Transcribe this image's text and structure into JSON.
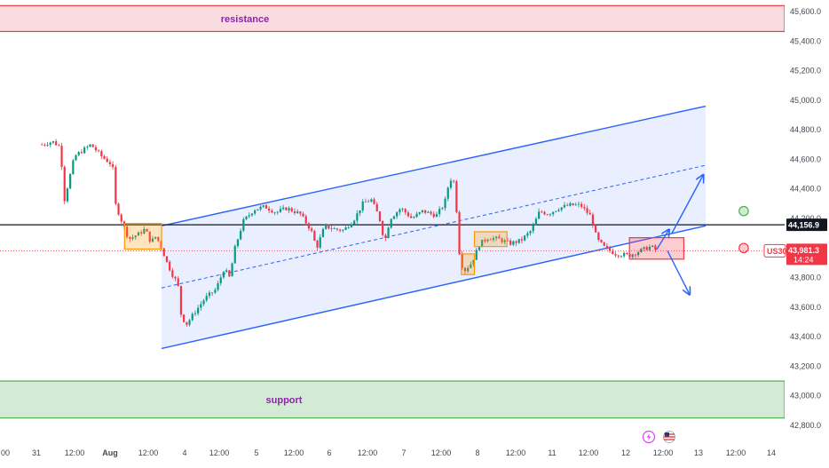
{
  "chart_data": {
    "type": "candlestick",
    "symbol": "US30",
    "last_price": "43,981.3",
    "countdown": "14:24",
    "level_price": "44,156.9",
    "ylim": [
      42780,
      45700
    ],
    "y_ticks": [
      "45,600.0",
      "45,400.0",
      "45,200.0",
      "45,000.0",
      "44,800.0",
      "44,600.0",
      "44,400.0",
      "44,200.0",
      "44,000.0",
      "43,800.0",
      "43,600.0",
      "43,400.0",
      "43,200.0",
      "43,000.0",
      "42,800.0"
    ],
    "x_ticks": [
      "00",
      "31",
      "12:00",
      "Aug",
      "12:00",
      "4",
      "12:00",
      "5",
      "12:00",
      "6",
      "12:00",
      "7",
      "12:00",
      "8",
      "12:00",
      "11",
      "12:00",
      "12",
      "12:00",
      "13",
      "12:00",
      "14"
    ],
    "zones": {
      "resistance": {
        "label": "resistance",
        "from": 45465,
        "to": 45640
      },
      "support": {
        "label": "support",
        "from": 42850,
        "to": 43100
      }
    },
    "channel": {
      "upper": [
        [
          0.0,
          44150
        ],
        [
          10.0,
          44960
        ]
      ],
      "lower": [
        [
          0.0,
          43320
        ],
        [
          10.0,
          44150
        ]
      ],
      "mid": [
        [
          0.0,
          43730
        ],
        [
          10.0,
          44560
        ]
      ]
    },
    "horizontal_level": 44157,
    "path": [
      [
        -2.2,
        44700
      ],
      [
        -2.0,
        44720
      ],
      [
        -1.85,
        44680
      ],
      [
        -1.8,
        44300
      ],
      [
        -1.6,
        44620
      ],
      [
        -1.3,
        44700
      ],
      [
        -1.1,
        44620
      ],
      [
        -0.9,
        44560
      ],
      [
        -0.85,
        44300
      ],
      [
        -0.7,
        44150
      ],
      [
        -0.6,
        44060
      ],
      [
        -0.4,
        44100
      ],
      [
        -0.3,
        44130
      ],
      [
        -0.2,
        44040
      ],
      [
        -0.1,
        44080
      ],
      [
        0.0,
        44000
      ],
      [
        0.1,
        43900
      ],
      [
        0.2,
        43820
      ],
      [
        0.3,
        43760
      ],
      [
        0.35,
        43560
      ],
      [
        0.45,
        43480
      ],
      [
        0.6,
        43560
      ],
      [
        0.8,
        43660
      ],
      [
        1.0,
        43720
      ],
      [
        1.15,
        43860
      ],
      [
        1.25,
        43800
      ],
      [
        1.35,
        44000
      ],
      [
        1.5,
        44180
      ],
      [
        1.7,
        44260
      ],
      [
        1.9,
        44280
      ],
      [
        2.1,
        44240
      ],
      [
        2.3,
        44270
      ],
      [
        2.55,
        44230
      ],
      [
        2.75,
        44120
      ],
      [
        2.85,
        44000
      ],
      [
        3.0,
        44150
      ],
      [
        3.15,
        44130
      ],
      [
        3.35,
        44120
      ],
      [
        3.55,
        44200
      ],
      [
        3.7,
        44300
      ],
      [
        3.85,
        44330
      ],
      [
        4.0,
        44210
      ],
      [
        4.1,
        44040
      ],
      [
        4.2,
        44200
      ],
      [
        4.4,
        44270
      ],
      [
        4.6,
        44200
      ],
      [
        4.8,
        44250
      ],
      [
        5.05,
        44220
      ],
      [
        5.2,
        44300
      ],
      [
        5.3,
        44470
      ],
      [
        5.4,
        44440
      ],
      [
        5.45,
        44010
      ],
      [
        5.55,
        43840
      ],
      [
        5.7,
        43900
      ],
      [
        5.85,
        44030
      ],
      [
        6.0,
        44070
      ],
      [
        6.2,
        44060
      ],
      [
        6.4,
        44030
      ],
      [
        6.6,
        44050
      ],
      [
        6.8,
        44120
      ],
      [
        6.95,
        44250
      ],
      [
        7.1,
        44230
      ],
      [
        7.3,
        44270
      ],
      [
        7.5,
        44290
      ],
      [
        7.7,
        44290
      ],
      [
        7.9,
        44210
      ],
      [
        8.0,
        44060
      ],
      [
        8.15,
        44000
      ],
      [
        8.35,
        43960
      ],
      [
        8.6,
        43950
      ],
      [
        8.85,
        43990
      ],
      [
        9.0,
        44010
      ],
      [
        9.1,
        43981
      ]
    ],
    "markers": {
      "boxes": [
        {
          "color": "orange",
          "x0": -0.68,
          "x1": 0.0,
          "y0": 43993,
          "y1": 44166
        },
        {
          "color": "orange",
          "x0": 5.51,
          "x1": 5.75,
          "y0": 43820,
          "y1": 43960
        },
        {
          "color": "orange",
          "x0": 5.75,
          "x1": 6.35,
          "y0": 44010,
          "y1": 44110
        },
        {
          "color": "red",
          "x0": 8.6,
          "x1": 9.6,
          "y0": 43925,
          "y1": 44070
        }
      ],
      "circles": [
        {
          "color": "green",
          "x": 10.7,
          "y": 44250
        },
        {
          "color": "red",
          "x": 10.7,
          "y": 44000
        }
      ],
      "arrows": [
        {
          "color": "blue",
          "from": [
            9.1,
            43990
          ],
          "to": [
            9.32,
            44120
          ]
        },
        {
          "color": "blue",
          "from": [
            9.38,
            44100
          ],
          "to": [
            9.95,
            44490
          ]
        },
        {
          "color": "blue",
          "from": [
            9.3,
            43980
          ],
          "to": [
            9.7,
            43690
          ]
        }
      ]
    },
    "icons": [
      "lightning-icon",
      "us-flag-icon"
    ]
  }
}
